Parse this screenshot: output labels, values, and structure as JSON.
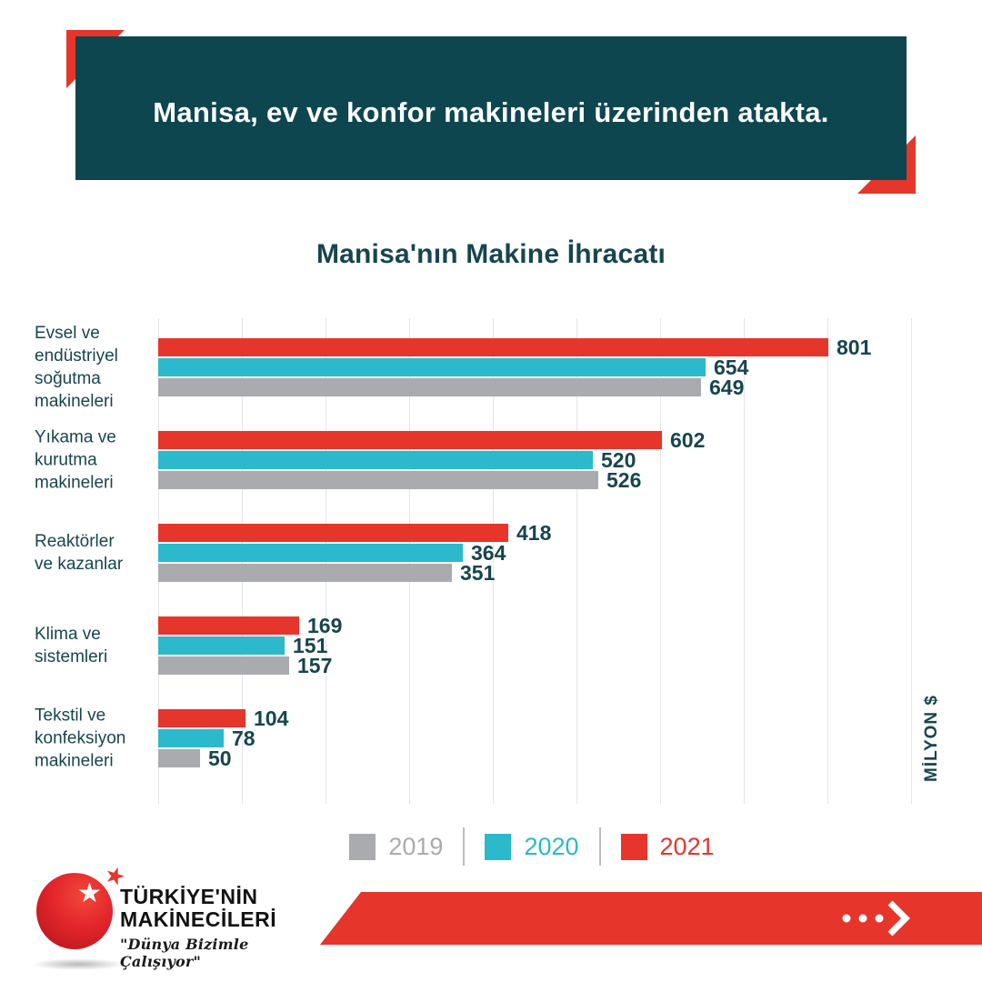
{
  "header": {
    "title": "Manisa, ev ve konfor makineleri üzerinden atakta."
  },
  "chart_data": {
    "type": "bar",
    "orientation": "horizontal",
    "title": "Manisa'nın Makine İhracatı",
    "unit_label": "MİLYON $",
    "xlim": [
      0,
      900
    ],
    "gridline_interval": 100,
    "grid": true,
    "legend_position": "bottom",
    "categories": [
      {
        "name": "Evsel ve endüstriyel soğutma makineleri",
        "lines": [
          "Evsel ve",
          "endüstriyel",
          "soğutma",
          "makineleri"
        ]
      },
      {
        "name": "Yıkama ve kurutma makineleri",
        "lines": [
          "Yıkama ve",
          "kurutma",
          "makineleri"
        ]
      },
      {
        "name": "Reaktörler ve kazanlar",
        "lines": [
          "Reaktörler",
          "ve kazanlar"
        ]
      },
      {
        "name": "Klima ve sistemleri",
        "lines": [
          "Klima ve",
          "sistemleri"
        ]
      },
      {
        "name": "Tekstil ve konfeksiyon makineleri",
        "lines": [
          "Tekstil ve",
          "konfeksiyon",
          "makineleri"
        ]
      }
    ],
    "series": [
      {
        "name": "2019",
        "color": "#A9ABAE",
        "values": [
          649,
          526,
          351,
          157,
          50
        ]
      },
      {
        "name": "2020",
        "color": "#2BB9CB",
        "values": [
          654,
          520,
          364,
          151,
          78
        ]
      },
      {
        "name": "2021",
        "color": "#E6352B",
        "values": [
          801,
          602,
          418,
          169,
          104
        ]
      }
    ],
    "stack_order_top_to_bottom": [
      2,
      1,
      0
    ]
  },
  "legend": {
    "items": [
      {
        "label": "2019",
        "color": "#A9ABAE"
      },
      {
        "label": "2020",
        "color": "#2BB9CB"
      },
      {
        "label": "2021",
        "color": "#E6352B"
      }
    ]
  },
  "footer": {
    "logo": {
      "line1": "TÜRKİYE'NİN",
      "line2": "MAKİNECİLERİ",
      "tagline": "\"Dünya Bizimle Çalışıyor\"",
      "star": "★"
    }
  },
  "colors": {
    "accent_red": "#E6352B",
    "accent_teal": "#2BB9CB",
    "neutral_gray": "#A9ABAE",
    "header_background": "#0E4650",
    "text_dark_teal": "#17454E",
    "gridline": "#E4E5E6"
  }
}
